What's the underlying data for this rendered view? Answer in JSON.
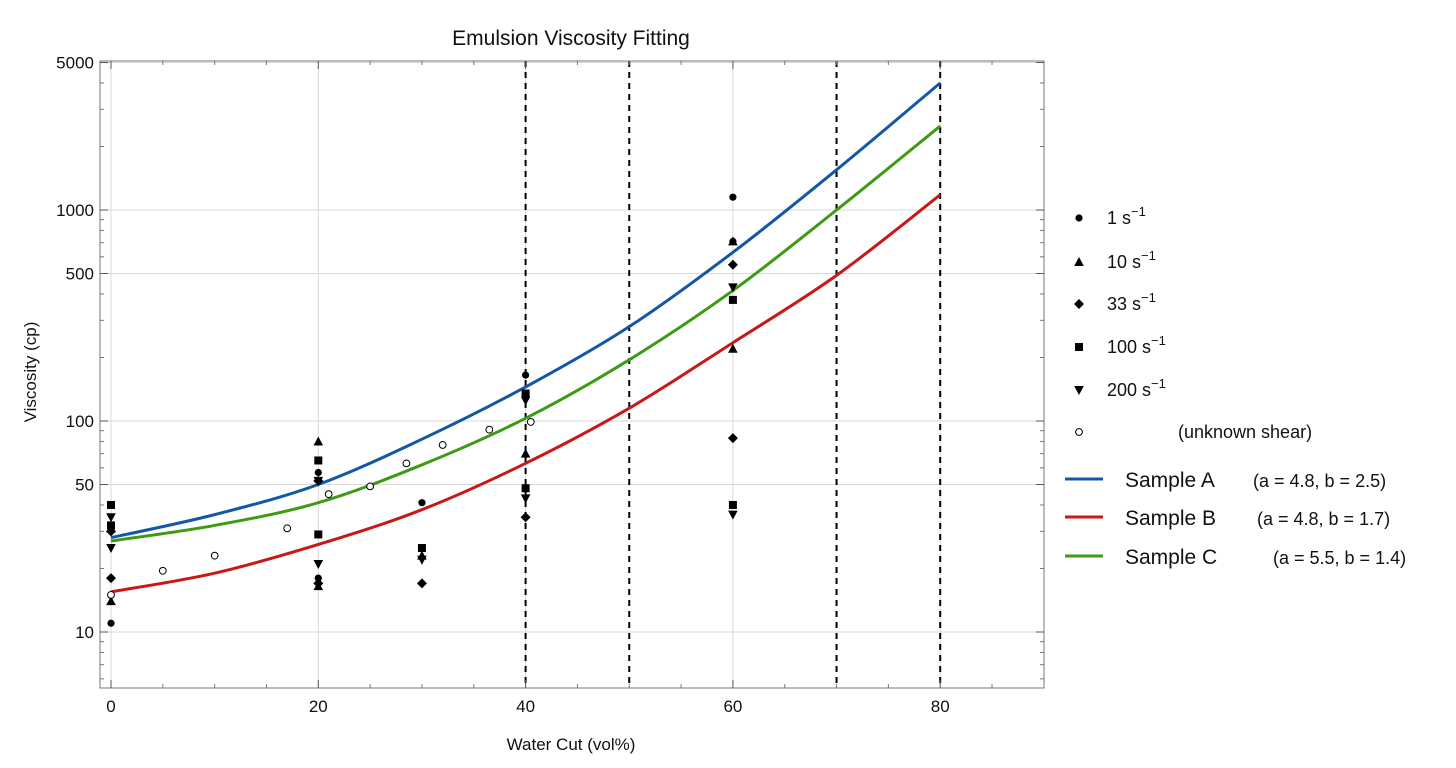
{
  "chart_data": {
    "type": "scatter",
    "title": "Emulsion Viscosity Fitting",
    "xlabel": "Water Cut (vol%)",
    "ylabel": "Viscosity (cp)",
    "xlim": [
      -1,
      90
    ],
    "ylim": [
      5,
      5000
    ],
    "y_scale": "log",
    "x_ticks": [
      0,
      20,
      40,
      60,
      80
    ],
    "x_tick_labels": [
      "0",
      "20",
      "40",
      "60",
      "80"
    ],
    "y_ticks": [
      10,
      50,
      100,
      500,
      1000,
      5000
    ],
    "y_tick_labels": [
      "10",
      "50",
      "100",
      "500",
      "1000",
      "5000"
    ],
    "grid": true,
    "legend_position": "right",
    "vertical_dashed_lines_x": [
      40,
      50,
      70,
      80
    ],
    "point_series": [
      {
        "name": "1 s",
        "superscript": "−1",
        "marker": "circle",
        "x": [
          0,
          20,
          20,
          30,
          40,
          60,
          60
        ],
        "y": [
          11,
          57,
          18,
          41,
          165,
          1150,
          710
        ]
      },
      {
        "name": "10 s",
        "superscript": "−1",
        "marker": "triangle-up",
        "x": [
          0,
          0,
          20,
          20,
          30,
          40,
          60,
          60
        ],
        "y": [
          14,
          31,
          80,
          16.5,
          23,
          70,
          710,
          220
        ]
      },
      {
        "name": "33 s",
        "superscript": "−1",
        "marker": "diamond",
        "x": [
          0,
          0,
          20,
          20,
          30,
          40,
          60,
          60
        ],
        "y": [
          18,
          30,
          52,
          17,
          17,
          35,
          550,
          83
        ]
      },
      {
        "name": "100 s",
        "superscript": "−1",
        "marker": "square",
        "x": [
          0,
          0,
          20,
          20,
          30,
          40,
          40,
          60,
          60
        ],
        "y": [
          40,
          32,
          65,
          29,
          25,
          48,
          135,
          375,
          40
        ]
      },
      {
        "name": "200 s",
        "superscript": "−1",
        "marker": "triangle-down",
        "x": [
          0,
          0,
          20,
          20,
          30,
          40,
          40,
          60,
          60
        ],
        "y": [
          35,
          25,
          21,
          52,
          22,
          43,
          125,
          430,
          36
        ]
      },
      {
        "name": "(unknown shear)",
        "superscript": "",
        "marker": "open-circle",
        "x": [
          0,
          5,
          10,
          17,
          21,
          25,
          28.5,
          32,
          36.5,
          40.5
        ],
        "y": [
          15,
          19.5,
          23,
          31,
          45,
          49,
          63,
          77,
          91,
          99
        ]
      }
    ],
    "fit_series": [
      {
        "name": "Sample A",
        "params": "(a = 4.8, b = 2.5)",
        "color": "#1357a6",
        "x": [
          0,
          10,
          20,
          30,
          40,
          50,
          60,
          70,
          80
        ],
        "y": [
          28,
          36,
          50,
          82,
          145,
          280,
          630,
          1550,
          4000
        ]
      },
      {
        "name": "Sample B",
        "params": "(a = 4.8, b = 1.7)",
        "color": "#c81818",
        "x": [
          0,
          10,
          20,
          30,
          40,
          50,
          60,
          70,
          80
        ],
        "y": [
          15.5,
          19,
          26,
          38,
          63,
          115,
          235,
          490,
          1180
        ]
      },
      {
        "name": "Sample C",
        "params": "(a = 5.5, b = 1.4)",
        "color": "#3c9a14",
        "x": [
          0,
          10,
          20,
          30,
          40,
          50,
          60,
          70,
          80
        ],
        "y": [
          27,
          32,
          41,
          62,
          103,
          195,
          415,
          1000,
          2500
        ]
      }
    ]
  }
}
